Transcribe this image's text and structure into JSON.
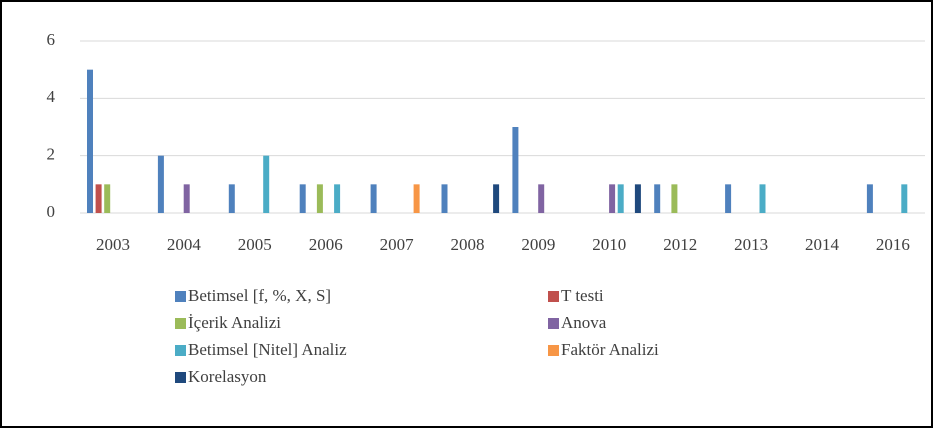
{
  "chart_data": {
    "type": "bar",
    "categories": [
      "2003",
      "2004",
      "2005",
      "2006",
      "2007",
      "2008",
      "2009",
      "2010",
      "2012",
      "2013",
      "2014",
      "2016"
    ],
    "series": [
      {
        "name": "Betimsel  [f, %, X, S]",
        "color": "#4f81bd",
        "values": [
          5,
          2,
          1,
          1,
          1,
          1,
          3,
          0,
          1,
          1,
          0,
          1
        ]
      },
      {
        "name": "T testi",
        "color": "#c0504d",
        "values": [
          1,
          0,
          0,
          0,
          0,
          0,
          0,
          0,
          0,
          0,
          0,
          0
        ]
      },
      {
        "name": "İçerik Analizi",
        "color": "#9bbb59",
        "values": [
          1,
          0,
          0,
          1,
          0,
          0,
          0,
          0,
          1,
          0,
          0,
          0
        ]
      },
      {
        "name": "Anova",
        "color": "#8064a2",
        "values": [
          0,
          1,
          0,
          0,
          0,
          0,
          1,
          1,
          0,
          0,
          0,
          0
        ]
      },
      {
        "name": "Betimsel [Nitel] Analiz",
        "color": "#4bacc6",
        "values": [
          0,
          0,
          2,
          1,
          0,
          0,
          0,
          1,
          0,
          1,
          0,
          1
        ]
      },
      {
        "name": "Faktör Analizi",
        "color": "#f79646",
        "values": [
          0,
          0,
          0,
          0,
          1,
          0,
          0,
          0,
          0,
          0,
          0,
          0
        ]
      },
      {
        "name": "Korelasyon",
        "color": "#1f497d",
        "values": [
          0,
          0,
          0,
          0,
          0,
          1,
          0,
          1,
          0,
          0,
          0,
          0
        ]
      }
    ],
    "ylim": [
      0,
      6
    ],
    "yticks": [
      0,
      2,
      4,
      6
    ],
    "grid": true,
    "legend": "bottom"
  }
}
